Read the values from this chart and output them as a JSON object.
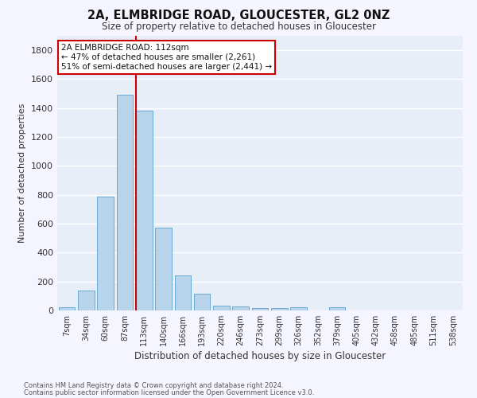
{
  "title1": "2A, ELMBRIDGE ROAD, GLOUCESTER, GL2 0NZ",
  "title2": "Size of property relative to detached houses in Gloucester",
  "xlabel": "Distribution of detached houses by size in Gloucester",
  "ylabel": "Number of detached properties",
  "bar_labels": [
    "7sqm",
    "34sqm",
    "60sqm",
    "87sqm",
    "113sqm",
    "140sqm",
    "166sqm",
    "193sqm",
    "220sqm",
    "246sqm",
    "273sqm",
    "299sqm",
    "326sqm",
    "352sqm",
    "379sqm",
    "405sqm",
    "432sqm",
    "458sqm",
    "485sqm",
    "511sqm",
    "538sqm"
  ],
  "bar_values": [
    20,
    135,
    790,
    1490,
    1385,
    575,
    245,
    115,
    35,
    25,
    15,
    15,
    20,
    0,
    20,
    0,
    0,
    0,
    0,
    0,
    0
  ],
  "bar_color": "#b8d4ea",
  "bar_edge_color": "#6aaad4",
  "annotation_text": "2A ELMBRIDGE ROAD: 112sqm\n← 47% of detached houses are smaller (2,261)\n51% of semi-detached houses are larger (2,441) →",
  "annotation_box_color": "#ffffff",
  "annotation_border_color": "#cc0000",
  "red_line_index": 4,
  "ylim": [
    0,
    1900
  ],
  "yticks": [
    0,
    200,
    400,
    600,
    800,
    1000,
    1200,
    1400,
    1600,
    1800
  ],
  "background_color": "#e8eef8",
  "grid_color": "#ffffff",
  "fig_bg_color": "#f5f5ff",
  "footer1": "Contains HM Land Registry data © Crown copyright and database right 2024.",
  "footer2": "Contains public sector information licensed under the Open Government Licence v3.0."
}
